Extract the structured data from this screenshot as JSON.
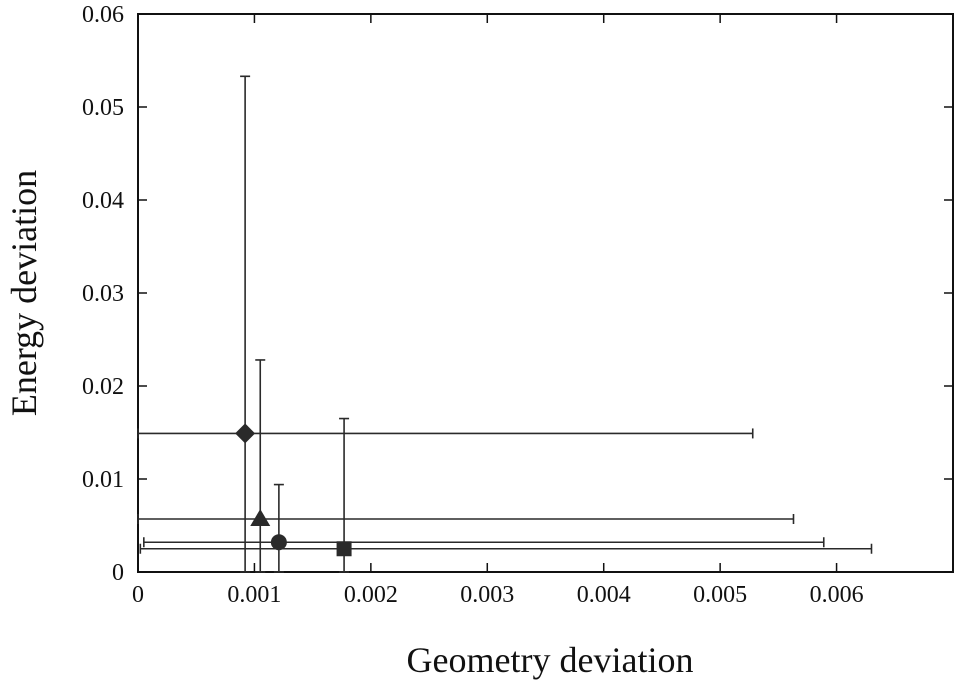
{
  "chart_data": {
    "type": "scatter",
    "title": "",
    "xlabel": "Geometry deviation",
    "ylabel": "Energy deviation",
    "xlim": [
      0,
      0.007
    ],
    "ylim": [
      0,
      0.06
    ],
    "x_ticks": [
      0,
      0.001,
      0.002,
      0.003,
      0.004,
      0.005,
      0.006
    ],
    "x_tick_labels": [
      "0",
      "0.001",
      "0.002",
      "0.003",
      "0.004",
      "0.005",
      "0.006"
    ],
    "y_ticks": [
      0,
      0.01,
      0.02,
      0.03,
      0.04,
      0.05,
      0.06
    ],
    "y_tick_labels": [
      "0",
      "0.01",
      "0.02",
      "0.03",
      "0.04",
      "0.05",
      "0.06"
    ],
    "grid": false,
    "legend": "none",
    "series": [
      {
        "marker": "diamond",
        "x": 0.00092,
        "y": 0.0149,
        "x_err": [
          0.0,
          0.00528
        ],
        "y_err": [
          0.0,
          0.0533
        ]
      },
      {
        "marker": "triangle",
        "x": 0.00105,
        "y": 0.0057,
        "x_err": [
          0.0,
          0.00563
        ],
        "y_err": [
          0.0,
          0.0228
        ]
      },
      {
        "marker": "circle",
        "x": 0.00121,
        "y": 0.0032,
        "x_err": [
          5e-05,
          0.00589
        ],
        "y_err": [
          0.0,
          0.0094
        ]
      },
      {
        "marker": "square",
        "x": 0.00177,
        "y": 0.0025,
        "x_err": [
          2e-05,
          0.0063
        ],
        "y_err": [
          0.0,
          0.0165
        ]
      }
    ],
    "colors": {
      "marker": "#2a2a2a",
      "axis": "#111111",
      "error_bar": "#2a2a2a"
    }
  }
}
